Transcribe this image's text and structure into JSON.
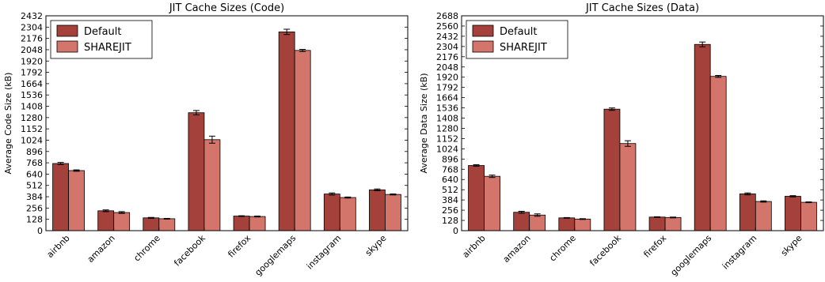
{
  "colors": {
    "default": "#a3413a",
    "sharejit": "#d4756b",
    "bar_edge": "#000000"
  },
  "chart_data": [
    {
      "type": "bar",
      "title": "JIT Cache Sizes (Code)",
      "xlabel": "",
      "ylabel": "Average Code Size (kB)",
      "ylim": [
        0,
        2432
      ],
      "yticks": [
        0,
        128,
        256,
        384,
        512,
        640,
        768,
        896,
        1024,
        1152,
        1280,
        1408,
        1536,
        1664,
        1792,
        1920,
        2048,
        2176,
        2304,
        2432
      ],
      "categories": [
        "airbnb",
        "amazon",
        "chrome",
        "facebook",
        "firefox",
        "googlemaps",
        "instagram",
        "skype"
      ],
      "legend": "upper left",
      "series": [
        {
          "name": "Default",
          "values": [
            760,
            225,
            145,
            1335,
            165,
            2250,
            415,
            462
          ],
          "errors": [
            12,
            10,
            5,
            25,
            4,
            30,
            12,
            10
          ]
        },
        {
          "name": "SHAREJIT",
          "values": [
            680,
            205,
            135,
            1030,
            160,
            2040,
            375,
            410
          ],
          "errors": [
            8,
            10,
            4,
            40,
            5,
            12,
            6,
            6
          ]
        }
      ]
    },
    {
      "type": "bar",
      "title": "JIT Cache Sizes (Data)",
      "xlabel": "",
      "ylabel": "Average Data Size (kB)",
      "ylim": [
        0,
        2688
      ],
      "yticks": [
        0,
        128,
        256,
        384,
        512,
        640,
        768,
        896,
        1024,
        1152,
        1280,
        1408,
        1536,
        1664,
        1792,
        1920,
        2048,
        2176,
        2304,
        2432,
        2560,
        2688
      ],
      "categories": [
        "airbnb",
        "amazon",
        "chrome",
        "facebook",
        "firefox",
        "googlemaps",
        "instagram",
        "skype"
      ],
      "legend": "upper left",
      "series": [
        {
          "name": "Default",
          "values": [
            815,
            230,
            160,
            1520,
            170,
            2330,
            460,
            430
          ],
          "errors": [
            10,
            12,
            4,
            15,
            4,
            30,
            12,
            8
          ]
        },
        {
          "name": "SHAREJIT",
          "values": [
            680,
            195,
            145,
            1090,
            165,
            1930,
            365,
            355
          ],
          "errors": [
            15,
            15,
            5,
            35,
            5,
            12,
            8,
            5
          ]
        }
      ]
    }
  ]
}
